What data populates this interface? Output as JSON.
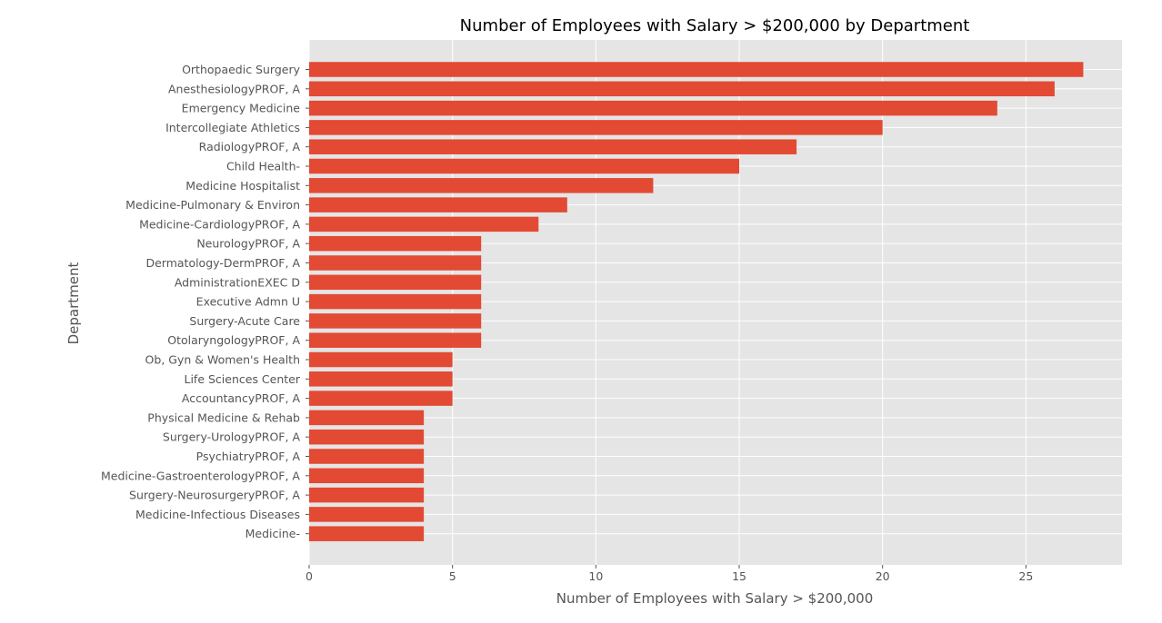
{
  "chart_data": {
    "type": "bar",
    "orientation": "horizontal",
    "title": "Number of Employees with Salary > $200,000 by Department",
    "xlabel": "Number of Employees with Salary > $200,000",
    "ylabel": "Department",
    "xlim": [
      0,
      28.35
    ],
    "xticks": [
      0,
      5,
      10,
      15,
      20,
      25
    ],
    "grid": true,
    "style": "ggplot",
    "colors": {
      "bar": "#E24A33",
      "plot_background": "#E5E5E5",
      "grid": "#FFFFFF",
      "tick_label": "#555555",
      "title": "#000000"
    },
    "categories": [
      "Orthopaedic Surgery",
      "AnesthesiologyPROF, A",
      "Emergency Medicine",
      "Intercollegiate Athletics",
      "RadiologyPROF, A",
      "Child Health-",
      "Medicine Hospitalist",
      "Medicine-Pulmonary & Environ",
      "Medicine-CardiologyPROF, A",
      "NeurologyPROF, A",
      "Dermatology-DermPROF, A",
      "AdministrationEXEC D",
      "Executive Admn U",
      "Surgery-Acute Care",
      "OtolaryngologyPROF, A",
      "Ob, Gyn & Women's Health",
      "Life Sciences Center",
      "AccountancyPROF, A",
      "Physical Medicine & Rehab",
      "Surgery-UrologyPROF, A",
      "PsychiatryPROF, A",
      "Medicine-GastroenterologyPROF, A",
      "Surgery-NeurosurgeryPROF, A",
      "Medicine-Infectious Diseases",
      "Medicine-"
    ],
    "values": [
      27,
      26,
      24,
      20,
      17,
      15,
      12,
      9,
      8,
      6,
      6,
      6,
      6,
      6,
      6,
      5,
      5,
      5,
      4,
      4,
      4,
      4,
      4,
      4,
      4
    ]
  }
}
